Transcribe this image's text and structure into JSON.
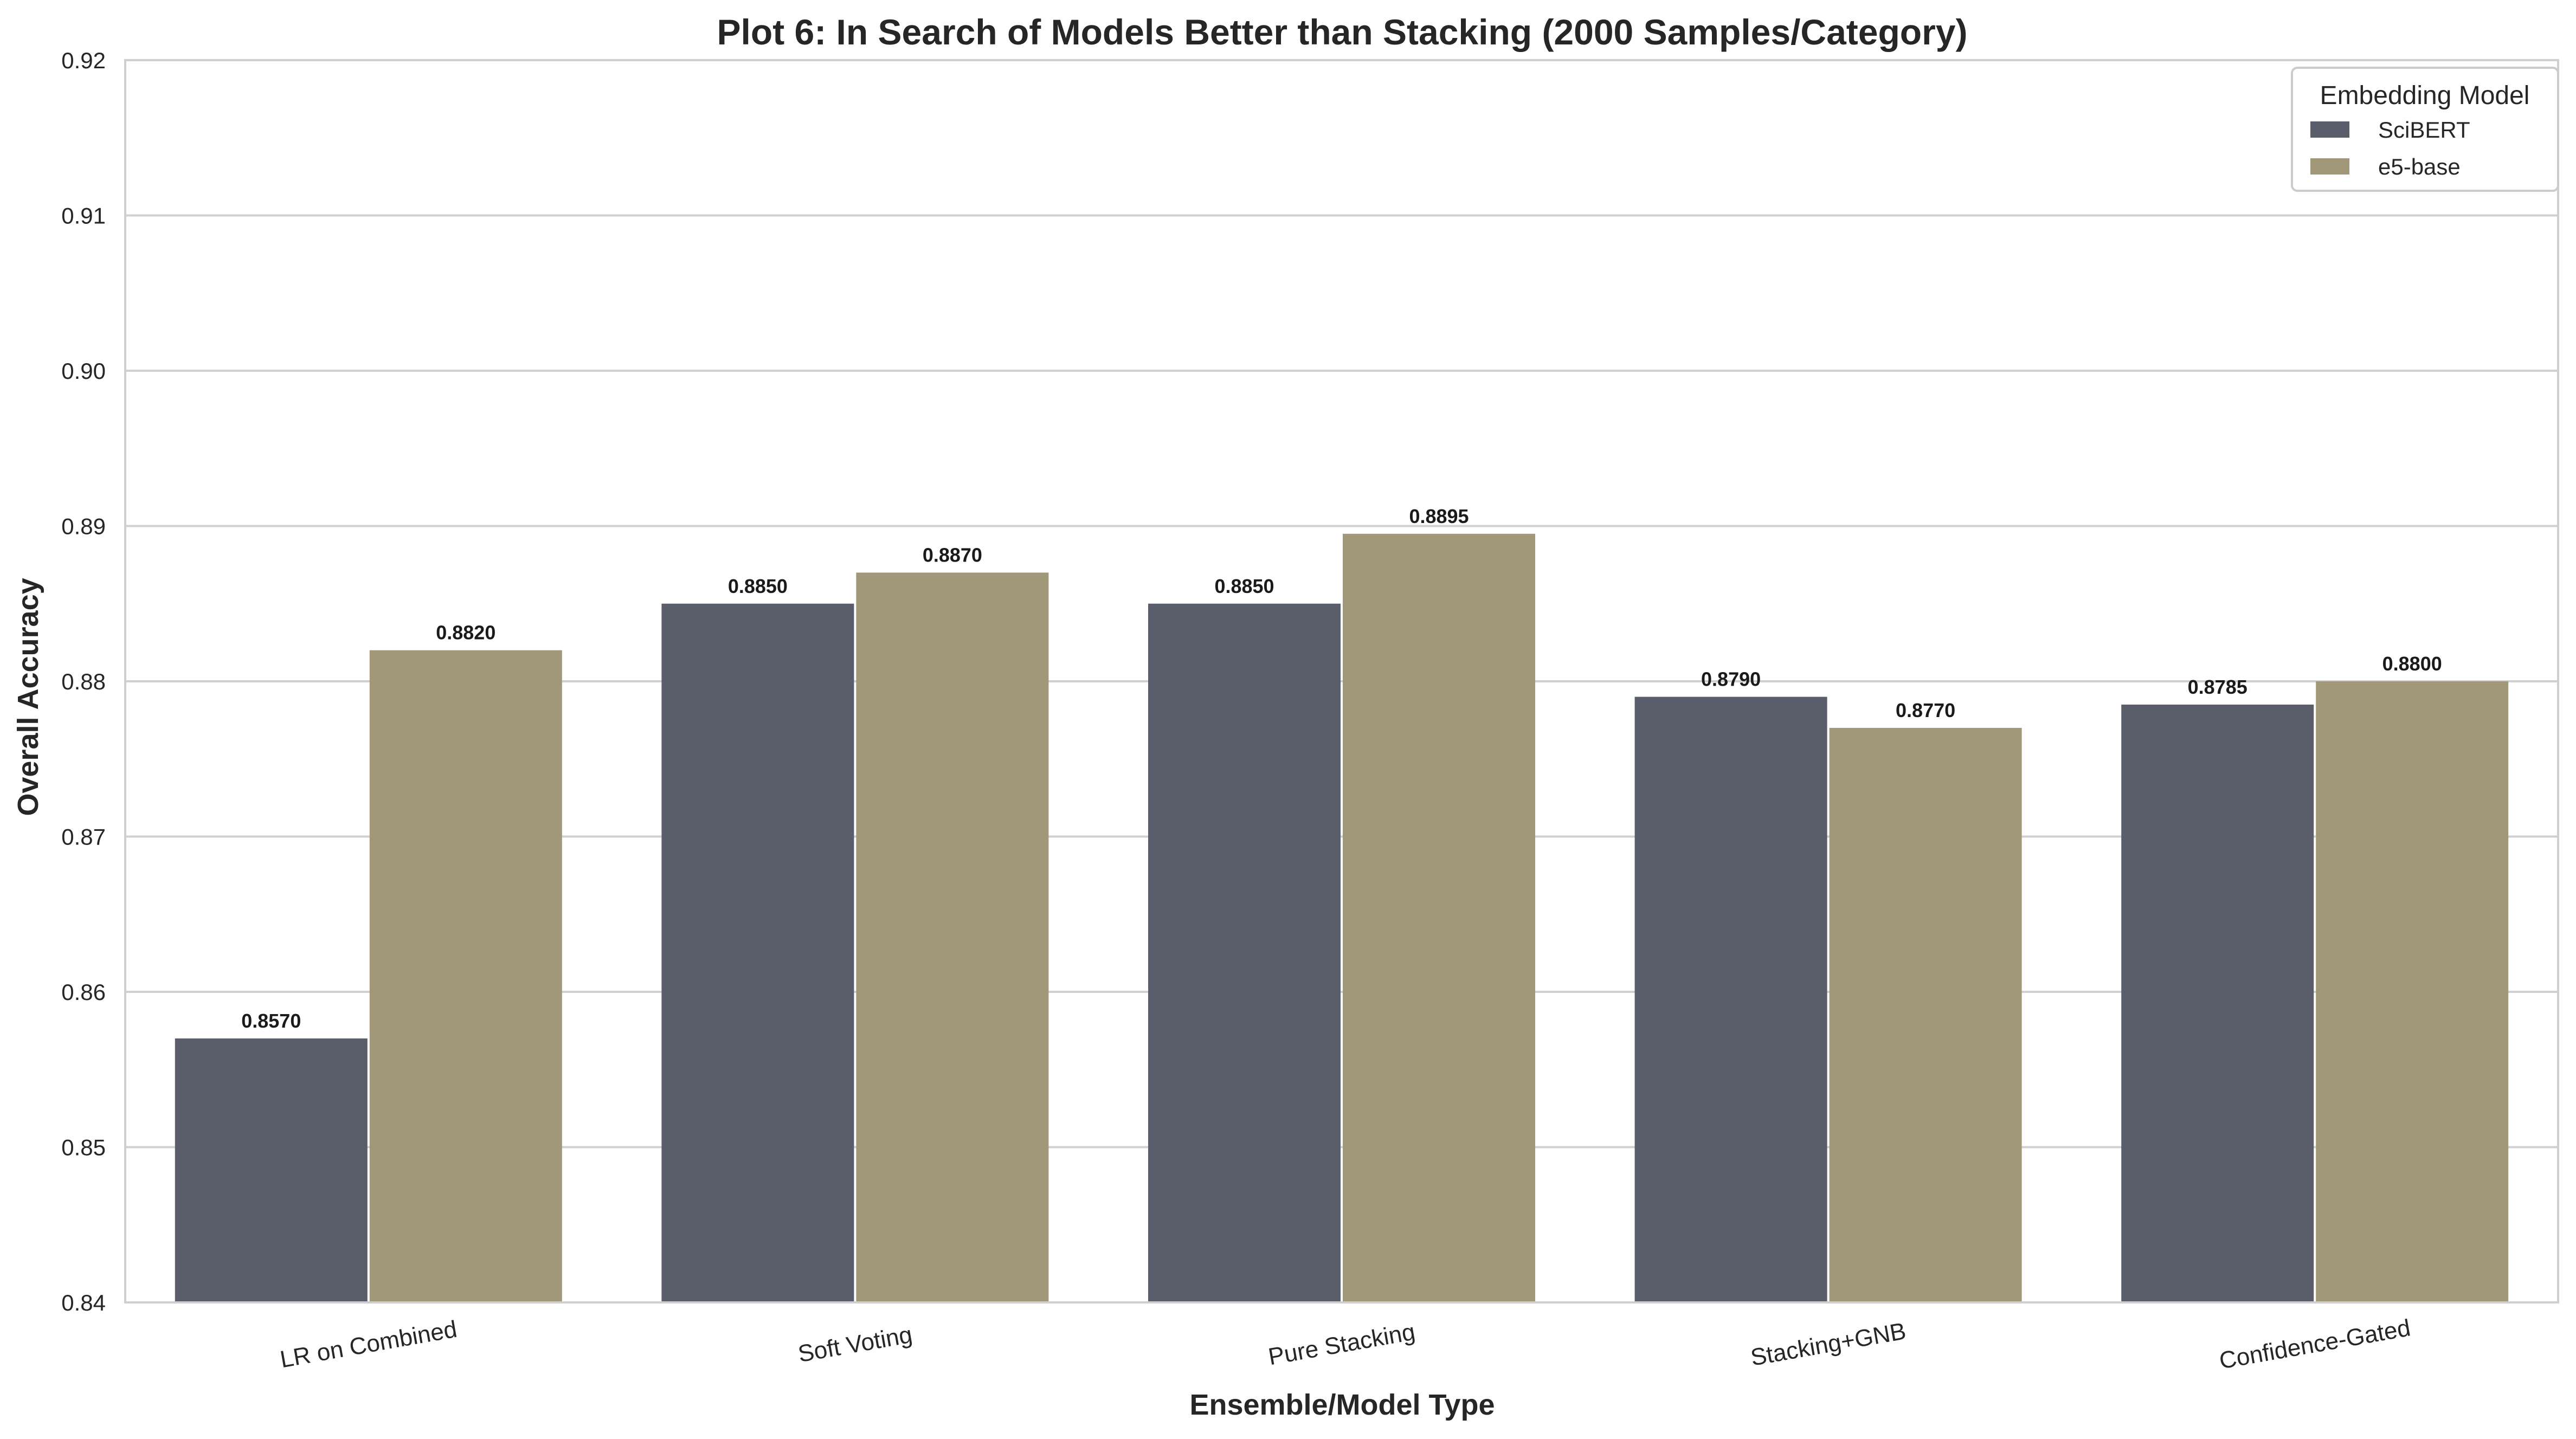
{
  "chart_data": {
    "type": "bar",
    "title": "Plot 6: In Search of Models Better than Stacking (2000 Samples/Category)",
    "xlabel": "Ensemble/Model Type",
    "ylabel": "Overall Accuracy",
    "categories": [
      "LR on Combined",
      "Soft Voting",
      "Pure Stacking",
      "Stacking+GNB",
      "Confidence-Gated"
    ],
    "series": [
      {
        "name": "SciBERT",
        "color": "#5a5e6b",
        "values": [
          0.857,
          0.885,
          0.885,
          0.879,
          0.8785
        ],
        "labels": [
          "0.8570",
          "0.8850",
          "0.8850",
          "0.8790",
          "0.8785"
        ]
      },
      {
        "name": "e5-base",
        "color": "#a09878",
        "values": [
          0.882,
          0.887,
          0.8895,
          0.877,
          0.88
        ],
        "labels": [
          "0.8820",
          "0.8870",
          "0.8895",
          "0.8770",
          "0.8800"
        ]
      }
    ],
    "ylim": [
      0.84,
      0.92
    ],
    "yticks": [
      "0.84",
      "0.85",
      "0.86",
      "0.87",
      "0.88",
      "0.89",
      "0.90",
      "0.91",
      "0.92"
    ],
    "grid": "horizontal",
    "legend": {
      "title": "Embedding Model",
      "position": "top-right"
    }
  }
}
